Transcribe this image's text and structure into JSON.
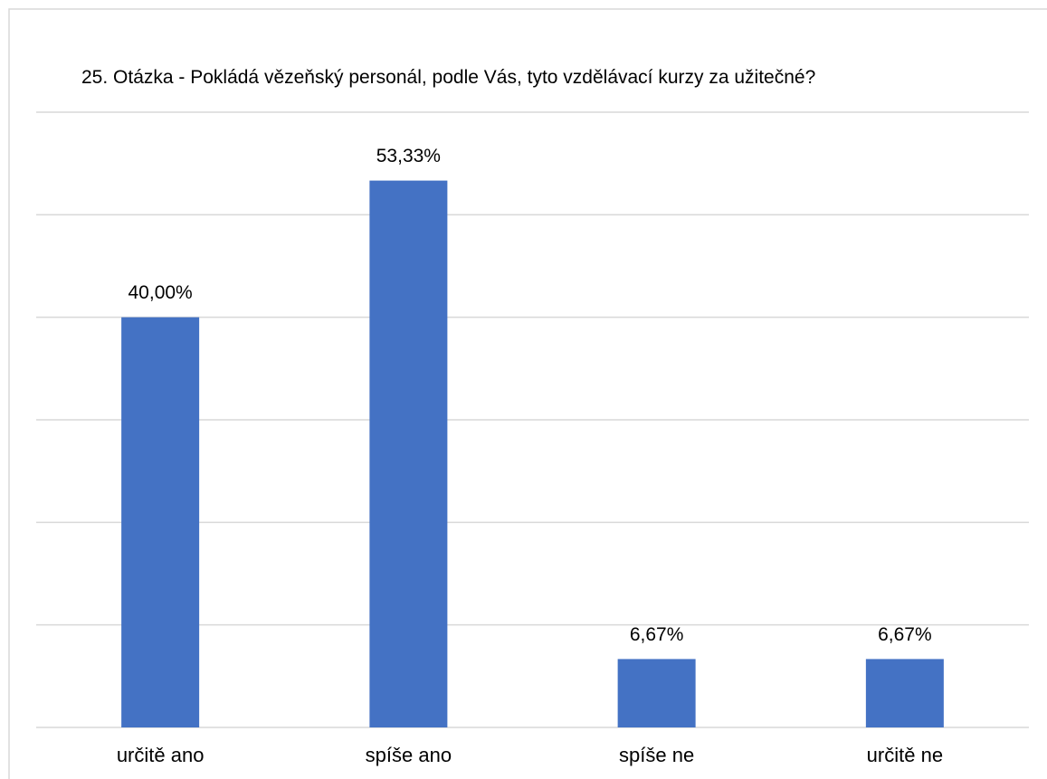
{
  "chart_data": {
    "type": "bar",
    "title": "25. Otázka - Pokládá vězeňský personál, podle Vás, tyto vzdělávací kurzy za užitečné?",
    "categories": [
      "určitě ano",
      "spíše ano",
      "spíše ne",
      "určitě ne"
    ],
    "values": [
      40.0,
      53.33,
      6.67,
      6.67
    ],
    "value_labels": [
      "40,00%",
      "53,33%",
      "6,67%",
      "6,67%"
    ],
    "color": "#4472c4",
    "ylim": [
      0,
      60
    ],
    "yticks": [
      0,
      10,
      20,
      30,
      40,
      50,
      60
    ],
    "grid": true
  }
}
